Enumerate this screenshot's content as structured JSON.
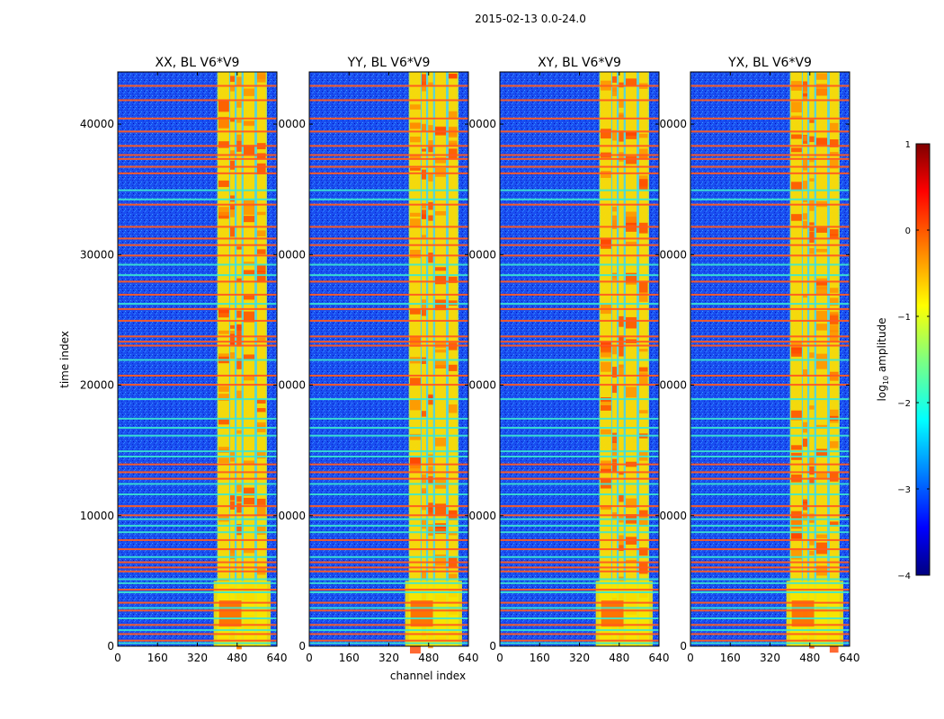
{
  "figure_title": "2015-02-13 0.0-24.0",
  "chart_data": {
    "type": "heatmap",
    "title": "2015-02-13 0.0-24.0",
    "xlabel": "channel index",
    "ylabel": "time index",
    "xlim": [
      0,
      640
    ],
    "ylim": [
      0,
      44000
    ],
    "x_ticks": [
      0,
      160,
      320,
      480,
      640
    ],
    "y_ticks": [
      0,
      10000,
      20000,
      30000,
      40000
    ],
    "x_tick_labels": [
      "0",
      "160",
      "320",
      "480",
      "640"
    ],
    "y_tick_labels": [
      "0",
      "10000",
      "20000",
      "30000",
      "40000"
    ],
    "panels": [
      {
        "title": "XX, BL V6*V9",
        "y_tick_labels": [
          "0",
          "10000",
          "20000",
          "30000",
          "40000"
        ]
      },
      {
        "title": "YY, BL V6*V9",
        "y_tick_labels": [
          "0",
          "0000",
          "0000",
          "0000",
          "0000"
        ]
      },
      {
        "title": "XY, BL V6*V9",
        "y_tick_labels": [
          "0",
          "0000",
          "0000",
          "0000",
          "0000"
        ]
      },
      {
        "title": "YX, BL V6*V9",
        "y_tick_labels": [
          "0",
          "0000",
          "0000",
          "0000",
          "0000"
        ]
      }
    ],
    "colorbar": {
      "label_prefix": "log",
      "label_sub": "10",
      "label_suffix": " amplitude",
      "range": [
        -4,
        1
      ],
      "ticks": [
        -4,
        -3,
        -2,
        -1,
        0,
        1
      ],
      "tick_labels": [
        "−4",
        "−3",
        "−2",
        "−1",
        "0",
        "1"
      ],
      "colormap": "jet"
    },
    "features": {
      "rfi_channel_band": [
        400,
        600
      ],
      "rfi_columns": [
        [
          405,
          448
        ],
        [
          452,
          470
        ],
        [
          478,
          498
        ],
        [
          506,
          550
        ],
        [
          560,
          595
        ]
      ],
      "red_time_lines": [
        43000,
        41900,
        40500,
        39500,
        38400,
        37700,
        37400,
        36800,
        36300,
        33900,
        32200,
        31300,
        30800,
        30000,
        28000,
        27000,
        25900,
        25000,
        23800,
        23400,
        23100,
        20800,
        20100,
        14000,
        13400,
        12900,
        10800,
        10100,
        8200,
        7500,
        6500,
        6100,
        5800,
        4400,
        3400,
        2800,
        1700,
        1000,
        500
      ],
      "cyan_time_lines": [
        35000,
        34300,
        29300,
        28500,
        26300,
        22000,
        19000,
        17500,
        16800,
        16200,
        15000,
        14600,
        12500,
        11700,
        9800,
        9300,
        8800,
        6900,
        5200,
        4900,
        4200,
        3000,
        2200,
        1300,
        300
      ],
      "low_time_burst": [
        0,
        5000
      ]
    }
  }
}
